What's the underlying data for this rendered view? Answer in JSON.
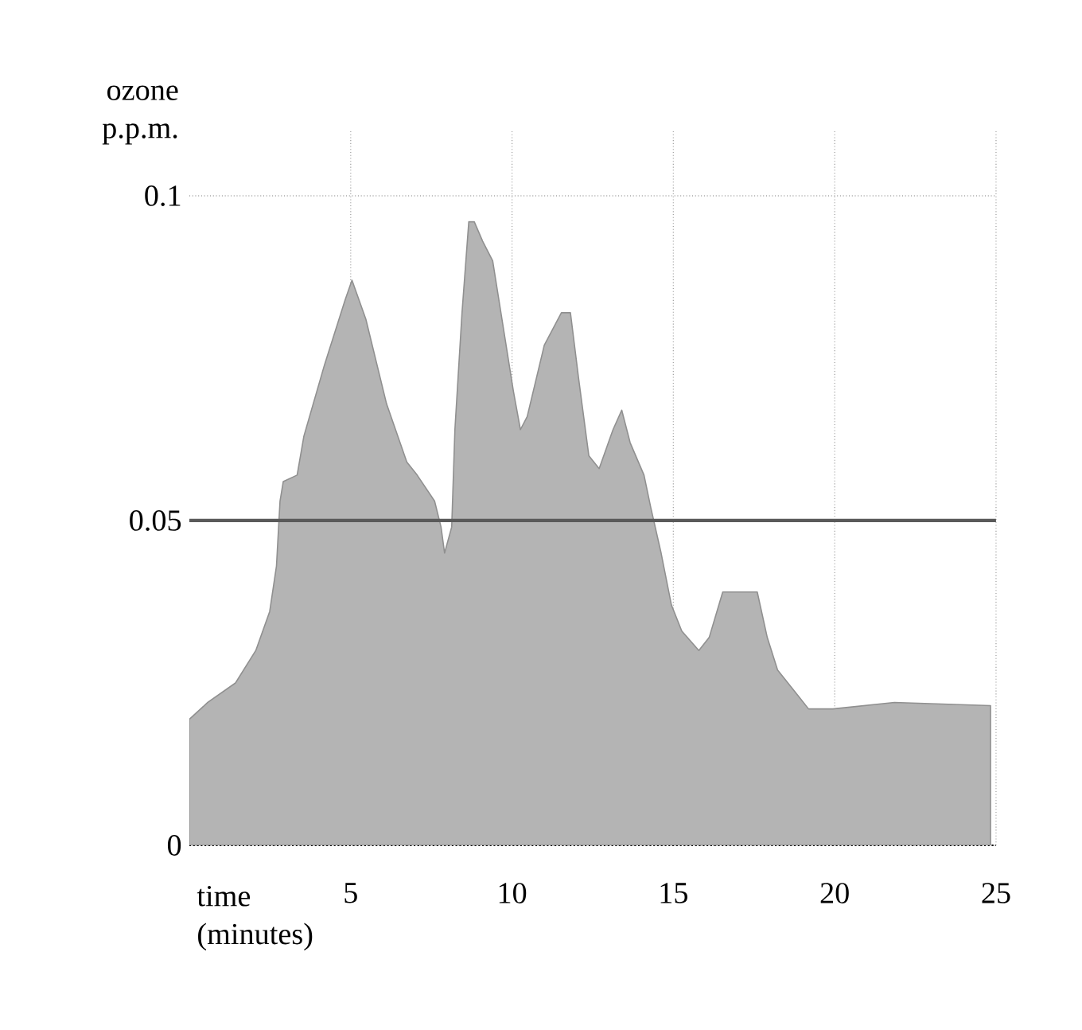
{
  "chart_data": {
    "type": "area",
    "xlabel": "time (minutes)",
    "ylabel": "ozone p.p.m.",
    "xlim": [
      0,
      25
    ],
    "ylim": [
      0,
      0.11
    ],
    "xticks": [
      5,
      10,
      15,
      20,
      25
    ],
    "yticks": [
      0,
      0.05,
      0.1
    ],
    "grid": true,
    "series": [
      {
        "color": "#b4b4b4",
        "x": [
          0,
          0.57,
          1.43,
          2.06,
          2.49,
          2.7,
          2.81,
          2.91,
          3.34,
          3.55,
          4.19,
          4.83,
          5.04,
          5.47,
          6.11,
          6.74,
          7.06,
          7.6,
          7.8,
          7.91,
          8.13,
          8.23,
          8.45,
          8.66,
          8.83,
          9.09,
          9.4,
          9.72,
          10.04,
          10.26,
          10.47,
          11.0,
          11.53,
          11.81,
          12.06,
          12.38,
          12.7,
          13.13,
          13.4,
          13.66,
          14.09,
          14.3,
          14.62,
          14.94,
          15.26,
          15.79,
          16.11,
          16.53,
          17.06,
          17.6,
          17.91,
          18.23,
          18.87,
          19.19,
          19.94,
          21.85,
          24.83
        ],
        "values": [
          0.0194,
          0.022,
          0.025,
          0.03,
          0.036,
          0.043,
          0.053,
          0.056,
          0.057,
          0.063,
          0.074,
          0.084,
          0.087,
          0.081,
          0.068,
          0.059,
          0.057,
          0.053,
          0.049,
          0.045,
          0.049,
          0.064,
          0.082,
          0.096,
          0.096,
          0.093,
          0.09,
          0.08,
          0.07,
          0.064,
          0.066,
          0.077,
          0.082,
          0.082,
          0.072,
          0.06,
          0.058,
          0.064,
          0.067,
          0.062,
          0.057,
          0.052,
          0.045,
          0.037,
          0.033,
          0.03,
          0.032,
          0.039,
          0.039,
          0.039,
          0.032,
          0.027,
          0.023,
          0.021,
          0.021,
          0.022,
          0.0215
        ]
      }
    ],
    "ref_lines": [
      {
        "axis": "y",
        "value": 0.05,
        "color": "#5a5a5a"
      }
    ]
  }
}
